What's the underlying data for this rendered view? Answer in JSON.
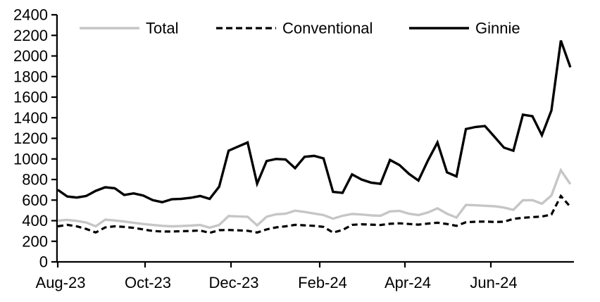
{
  "chart_data": {
    "type": "line",
    "title": "",
    "x_unit": "weekly observations, Aug-2023 through Aug-2024",
    "x_tick_labels": [
      "Aug-23",
      "Oct-23",
      "Dec-23",
      "Feb-24",
      "Apr-24",
      "Jun-24"
    ],
    "y_axis": {
      "min": 0,
      "max": 2400,
      "step": 200,
      "tick_labels": [
        "0",
        "200",
        "400",
        "600",
        "800",
        "1000",
        "1200",
        "1400",
        "1600",
        "1800",
        "2000",
        "2200",
        "2400"
      ]
    },
    "grid": false,
    "legend_position": "top",
    "axis_color": "#000000",
    "series": [
      {
        "name": "Total",
        "color": "#c6c6c6",
        "line_style": "solid",
        "values": [
          400,
          408,
          398,
          382,
          345,
          410,
          402,
          392,
          380,
          368,
          358,
          350,
          345,
          348,
          352,
          358,
          332,
          358,
          445,
          442,
          438,
          355,
          438,
          462,
          468,
          498,
          485,
          470,
          455,
          420,
          448,
          465,
          460,
          452,
          448,
          490,
          495,
          468,
          455,
          480,
          520,
          468,
          430,
          553,
          550,
          545,
          540,
          528,
          505,
          598,
          600,
          565,
          645,
          890,
          755
        ]
      },
      {
        "name": "Conventional",
        "color": "#000000",
        "line_style": "dashed",
        "values": [
          345,
          360,
          345,
          320,
          285,
          335,
          345,
          340,
          330,
          315,
          300,
          295,
          295,
          298,
          300,
          305,
          282,
          308,
          310,
          306,
          302,
          285,
          315,
          335,
          345,
          360,
          355,
          350,
          340,
          285,
          310,
          360,
          365,
          362,
          358,
          370,
          375,
          368,
          362,
          372,
          380,
          368,
          350,
          385,
          390,
          392,
          388,
          390,
          418,
          428,
          435,
          440,
          460,
          640,
          535
        ]
      },
      {
        "name": "Ginnie",
        "color": "#000000",
        "line_style": "solid",
        "values": [
          700,
          635,
          625,
          640,
          690,
          725,
          715,
          650,
          665,
          645,
          600,
          580,
          608,
          612,
          622,
          640,
          612,
          730,
          1080,
          1120,
          1160,
          760,
          980,
          1000,
          995,
          910,
          1020,
          1030,
          1005,
          680,
          670,
          850,
          800,
          770,
          758,
          990,
          940,
          855,
          790,
          985,
          1160,
          870,
          830,
          1290,
          1310,
          1320,
          1215,
          1110,
          1080,
          1430,
          1415,
          1230,
          1470,
          2150,
          1890
        ]
      }
    ]
  }
}
